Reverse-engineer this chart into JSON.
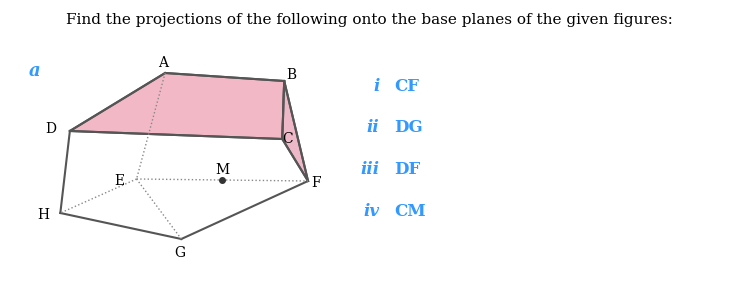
{
  "title": "Find the projections of the following onto the base planes of the given figures:",
  "title_fontsize": 11,
  "label_a": "a",
  "label_color": "#3399ff",
  "box_face_color": "#f2b8c6",
  "box_edge_color": "#555555",
  "box_edge_width": 1.5,
  "dashed_color": "#888888",
  "dot_color": "#333333",
  "items": [
    {
      "roman": "i",
      "text": "CF"
    },
    {
      "roman": "ii",
      "text": "DG"
    },
    {
      "roman": "iii",
      "text": "DF"
    },
    {
      "roman": "iv",
      "text": "CM"
    }
  ],
  "item_color": "#3399ff",
  "item_fontsize": 12,
  "background": "#ffffff"
}
